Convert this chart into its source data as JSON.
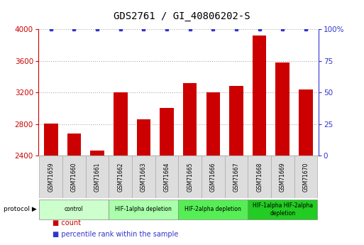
{
  "title": "GDS2761 / GI_40806202-S",
  "samples": [
    "GSM71659",
    "GSM71660",
    "GSM71661",
    "GSM71662",
    "GSM71663",
    "GSM71664",
    "GSM71665",
    "GSM71666",
    "GSM71667",
    "GSM71668",
    "GSM71669",
    "GSM71670"
  ],
  "counts": [
    2810,
    2680,
    2460,
    3200,
    2860,
    3000,
    3320,
    3200,
    3280,
    3920,
    3580,
    3240
  ],
  "percentile_ranks": [
    100,
    100,
    100,
    100,
    100,
    100,
    100,
    100,
    100,
    100,
    100,
    100
  ],
  "bar_color": "#cc0000",
  "dot_color": "#3333cc",
  "ylim_left": [
    2400,
    4000
  ],
  "ylim_right": [
    0,
    100
  ],
  "yticks_left": [
    2400,
    2800,
    3200,
    3600,
    4000
  ],
  "yticks_right": [
    0,
    25,
    50,
    75,
    100
  ],
  "ytick_labels_right": [
    "0",
    "25",
    "50",
    "75",
    "100%"
  ],
  "groups": [
    {
      "label": "control",
      "start": 0,
      "end": 3,
      "color": "#ccffcc"
    },
    {
      "label": "HIF-1alpha depletion",
      "start": 3,
      "end": 6,
      "color": "#aaffaa"
    },
    {
      "label": "HIF-2alpha depletion",
      "start": 6,
      "end": 9,
      "color": "#55ee55"
    },
    {
      "label": "HIF-1alpha HIF-2alpha\ndepletion",
      "start": 9,
      "end": 12,
      "color": "#22cc22"
    }
  ],
  "bar_color_left": "#cc0000",
  "right_axis_color": "#3333cc",
  "grid_color": "#aaaaaa",
  "protocol_label": "protocol",
  "legend_count_label": "count",
  "legend_pct_label": "percentile rank within the sample",
  "sample_box_color": "#dddddd",
  "tick_fontsize": 7.5,
  "title_fontsize": 10
}
